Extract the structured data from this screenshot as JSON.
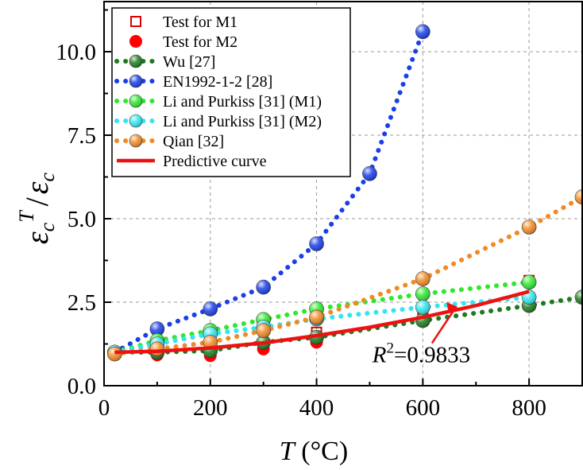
{
  "chart_data": {
    "type": "line",
    "title": "",
    "xlabel": "T",
    "xlabel_unit": "(°C)",
    "ylabel_base": "ε",
    "ylabel_sub": "c",
    "ylabel_sup": "T",
    "ylabel_slash": "/",
    "xlim": [
      0,
      900
    ],
    "ylim": [
      0,
      11.5
    ],
    "x_ticks": [
      0,
      200,
      400,
      600,
      800
    ],
    "x_tick_labels": [
      "0",
      "200",
      "400",
      "600",
      "800"
    ],
    "y_ticks": [
      0,
      2.5,
      5.0,
      7.5,
      10.0
    ],
    "y_tick_labels": [
      "0.0",
      "2.5",
      "5.0",
      "7.5",
      "10.0"
    ],
    "grid": true,
    "legend_position": "top-left",
    "annotation": {
      "label_base": "R",
      "label_sup": "2",
      "label_value": "=0.9833",
      "text_at": [
        505,
        0.7
      ],
      "arrow_to": [
        660,
        2.5
      ]
    },
    "series": [
      {
        "name": "Test for M1",
        "kind": "open-square",
        "color": "#e00000",
        "x": [
          20,
          100,
          200,
          300,
          400,
          600,
          800
        ],
        "y": [
          1.0,
          1.1,
          1.05,
          1.2,
          1.6,
          2.1,
          3.15
        ]
      },
      {
        "name": "Test for M2",
        "kind": "filled-circle",
        "color": "#ff0000",
        "x": [
          20,
          100,
          200,
          300,
          400,
          600,
          800
        ],
        "y": [
          1.0,
          0.92,
          0.9,
          1.1,
          1.3,
          2.0,
          2.45
        ]
      },
      {
        "name": "Wu [27]",
        "kind": "dotted-ball",
        "color": "#1e7a1e",
        "x": [
          20,
          100,
          200,
          300,
          400,
          600,
          800,
          900
        ],
        "y": [
          1.0,
          1.0,
          1.05,
          1.3,
          1.45,
          1.95,
          2.4,
          2.65
        ]
      },
      {
        "name": "EN1992-1-2 [28]",
        "kind": "dotted-ball",
        "color": "#1a3ee8",
        "x": [
          20,
          100,
          200,
          300,
          400,
          500,
          600
        ],
        "y": [
          1.0,
          1.7,
          2.3,
          2.95,
          4.25,
          6.35,
          10.6
        ]
      },
      {
        "name": "Li and Purkiss [31] (M1)",
        "kind": "dotted-ball",
        "color": "#2ee82e",
        "x": [
          20,
          100,
          200,
          300,
          400,
          600,
          800
        ],
        "y": [
          1.0,
          1.35,
          1.65,
          1.98,
          2.3,
          2.75,
          3.1
        ]
      },
      {
        "name": "Li and Purkiss [31] (M2)",
        "kind": "dotted-ball",
        "color": "#33e5ee",
        "x": [
          20,
          100,
          200,
          300,
          400,
          600,
          800
        ],
        "y": [
          1.0,
          1.25,
          1.55,
          1.75,
          2.0,
          2.35,
          2.65
        ]
      },
      {
        "name": "Qian [32]",
        "kind": "dotted-ball",
        "color": "#f08a24",
        "x": [
          20,
          100,
          200,
          300,
          400,
          600,
          800,
          900
        ],
        "y": [
          0.95,
          1.1,
          1.3,
          1.65,
          2.05,
          3.2,
          4.75,
          5.65
        ]
      },
      {
        "name": "Predictive curve",
        "kind": "solid-line",
        "color": "#ee1111",
        "x": [
          20,
          100,
          200,
          300,
          400,
          500,
          600,
          700,
          800
        ],
        "y": [
          1.0,
          1.03,
          1.13,
          1.28,
          1.5,
          1.75,
          2.05,
          2.4,
          2.82
        ]
      }
    ]
  }
}
